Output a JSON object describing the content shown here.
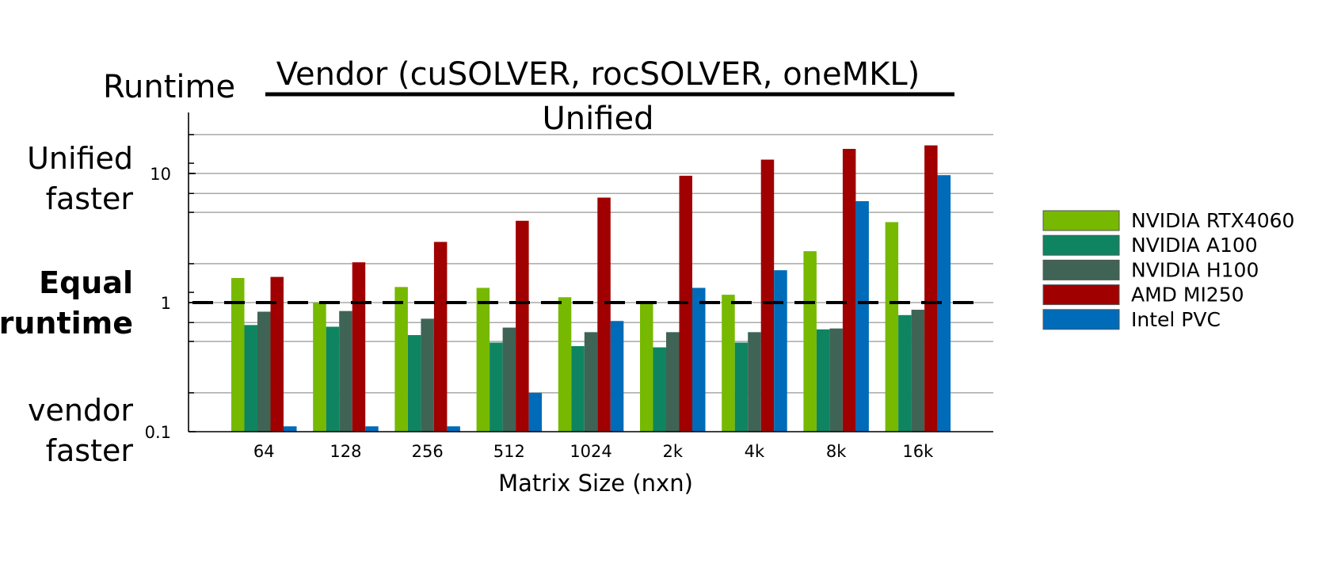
{
  "chart_data": {
    "type": "bar",
    "title": {
      "prefix": "Runtime",
      "numerator": "Vendor (cuSOLVER, rocSOLVER, oneMKL)",
      "denominator": "Unified"
    },
    "xlabel": "Matrix Size (nxn)",
    "ylabel_annotations": {
      "top": [
        "Unified",
        "faster"
      ],
      "middle": [
        "Equal",
        "runtime"
      ],
      "bottom": [
        "vendor",
        "faster"
      ]
    },
    "y_scale": "log",
    "ylim": [
      0.1,
      30
    ],
    "y_ticks": [
      0.1,
      1,
      10
    ],
    "y_tick_labels": [
      "0.1",
      "1",
      "10"
    ],
    "grid": true,
    "reference_line": 1,
    "legend_position": "right",
    "categories": [
      "64",
      "128",
      "256",
      "512",
      "1024",
      "2k",
      "4k",
      "8k",
      "16k"
    ],
    "series": [
      {
        "name": "NVIDIA RTX4060",
        "color": "#76b900",
        "values": [
          1.55,
          1.0,
          1.32,
          1.3,
          1.1,
          1.0,
          1.15,
          2.5,
          4.2
        ]
      },
      {
        "name": "NVIDIA A100",
        "color": "#0e8560",
        "values": [
          0.67,
          0.65,
          0.56,
          0.49,
          0.46,
          0.45,
          0.49,
          0.62,
          0.8
        ]
      },
      {
        "name": "NVIDIA H100",
        "color": "#3f6455",
        "values": [
          0.85,
          0.86,
          0.75,
          0.64,
          0.59,
          0.59,
          0.59,
          0.63,
          0.88
        ]
      },
      {
        "name": "AMD MI250",
        "color": "#a00000",
        "values": [
          1.58,
          2.05,
          2.95,
          4.3,
          6.5,
          9.6,
          12.8,
          15.5,
          16.5
        ]
      },
      {
        "name": "Intel PVC",
        "color": "#006bb8",
        "values": [
          0.11,
          0.11,
          0.11,
          0.2,
          0.72,
          1.3,
          1.78,
          6.1,
          9.7
        ]
      }
    ]
  }
}
